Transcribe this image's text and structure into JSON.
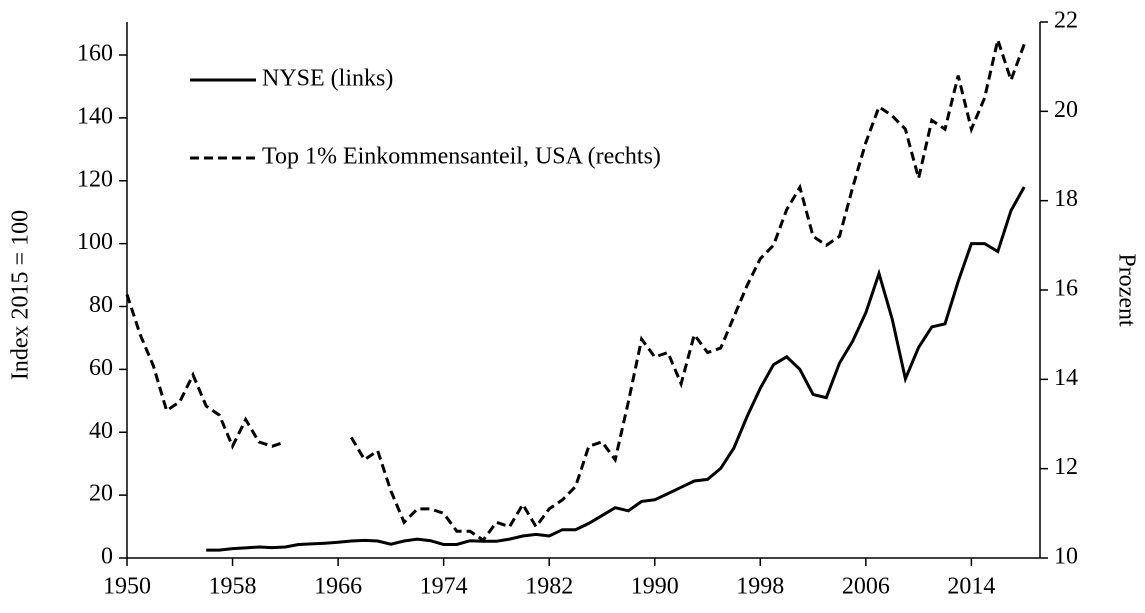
{
  "chart_data": {
    "type": "line",
    "y_label": "Index 2015 = 100",
    "y2_label": "Prozent",
    "x": [
      1950,
      1951,
      1952,
      1953,
      1954,
      1955,
      1956,
      1957,
      1958,
      1959,
      1960,
      1961,
      1962,
      1963,
      1964,
      1965,
      1966,
      1967,
      1968,
      1969,
      1970,
      1971,
      1972,
      1973,
      1974,
      1975,
      1976,
      1977,
      1978,
      1979,
      1980,
      1981,
      1982,
      1983,
      1984,
      1985,
      1986,
      1987,
      1988,
      1989,
      1990,
      1991,
      1992,
      1993,
      1994,
      1995,
      1996,
      1997,
      1998,
      1999,
      2000,
      2001,
      2002,
      2003,
      2004,
      2005,
      2006,
      2007,
      2008,
      2009,
      2010,
      2011,
      2012,
      2013,
      2014,
      2015,
      2016,
      2017,
      2018
    ],
    "series": [
      {
        "name": "NYSE (links)",
        "color": "#000000",
        "dash": "solid",
        "axis": "y",
        "values": [
          null,
          null,
          null,
          null,
          null,
          null,
          2.5,
          2.5,
          3,
          3.2,
          3.5,
          3.3,
          3.5,
          4.3,
          4.5,
          4.7,
          5,
          5.4,
          5.6,
          5.4,
          4.4,
          5.4,
          6,
          5.5,
          4.3,
          4.3,
          5.5,
          5.3,
          5.3,
          6,
          7,
          7.5,
          7,
          9,
          9,
          11,
          13.5,
          16,
          15,
          18,
          18.5,
          20.5,
          22.5,
          24.5,
          25,
          28.5,
          35,
          45,
          54,
          61.5,
          64,
          60,
          52,
          51,
          62,
          69,
          78,
          90.5,
          76,
          57,
          67,
          73.5,
          74.5,
          88,
          100,
          100,
          97.5,
          110.5,
          118
        ]
      },
      {
        "name": "Top 1% Einkommensanteil, USA (rechts)",
        "color": "#000000",
        "dash": "dashed",
        "axis": "y2",
        "values": [
          15.9,
          15,
          14.3,
          13.3,
          13.5,
          14.1,
          13.4,
          13.2,
          12.5,
          13.1,
          12.6,
          12.5,
          12.6,
          null,
          null,
          null,
          null,
          12.7,
          12.2,
          12.4,
          11.5,
          10.8,
          11.1,
          11.1,
          11,
          10.6,
          10.6,
          10.4,
          10.8,
          10.7,
          11.2,
          10.7,
          11.1,
          11.3,
          11.6,
          12.5,
          12.6,
          12.2,
          13.5,
          14.9,
          14.5,
          14.6,
          13.9,
          15,
          14.6,
          14.7,
          15.4,
          16.1,
          16.7,
          17,
          17.8,
          18.3,
          17.2,
          17,
          17.2,
          18.3,
          19.3,
          20.1,
          19.9,
          19.6,
          18.5,
          19.8,
          19.6,
          20.8,
          19.6,
          20.3,
          21.6,
          20.7,
          21.5
        ]
      }
    ],
    "xlim": [
      1950,
      2019.2
    ],
    "xticks": [
      1950,
      1958,
      1966,
      1974,
      1982,
      1990,
      1998,
      2006,
      2014
    ],
    "ylim": [
      0,
      170.5
    ],
    "yticks": [
      0,
      20,
      40,
      60,
      80,
      100,
      120,
      140,
      160
    ],
    "y2lim": [
      10,
      22
    ],
    "y2ticks": [
      10,
      12,
      14,
      16,
      18,
      20,
      22
    ],
    "legend": "top-left"
  }
}
